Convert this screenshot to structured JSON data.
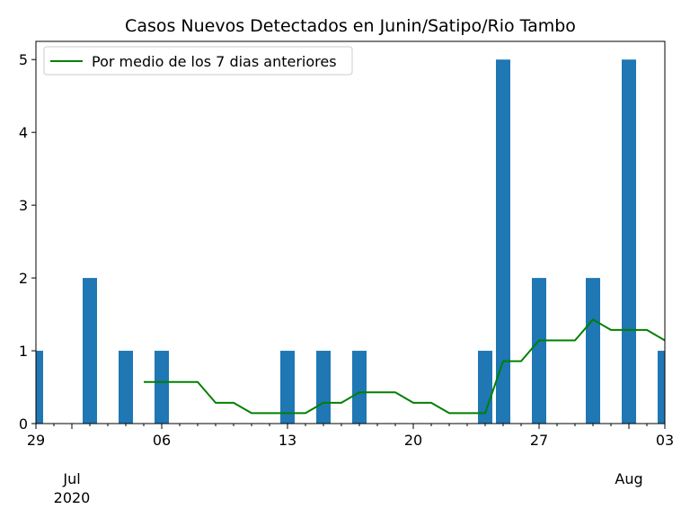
{
  "chart_data": {
    "type": "bar",
    "title": "Casos Nuevos Detectados en Junin/Satipo/Rio Tambo",
    "xlabel": "",
    "ylabel": "",
    "ylim": [
      0,
      5.25
    ],
    "xlim": [
      "2020-06-29",
      "2020-08-03"
    ],
    "grid": false,
    "legend_position": "upper-left",
    "bar_color": "#1f77b4",
    "line_color": "#008000",
    "x_major_ticks": [
      {
        "date": "2020-06-29",
        "label": "29"
      },
      {
        "date": "2020-07-06",
        "label": "06"
      },
      {
        "date": "2020-07-13",
        "label": "13"
      },
      {
        "date": "2020-07-20",
        "label": "20"
      },
      {
        "date": "2020-07-27",
        "label": "27"
      },
      {
        "date": "2020-08-03",
        "label": "03"
      }
    ],
    "x_secondary_labels": [
      {
        "date": "2020-07-01",
        "lines": [
          "Jul",
          "2020"
        ]
      },
      {
        "date": "2020-08-01",
        "lines": [
          "Aug"
        ]
      }
    ],
    "y_ticks": [
      0,
      1,
      2,
      3,
      4,
      5
    ],
    "bars": [
      {
        "date": "2020-06-29",
        "value": 1
      },
      {
        "date": "2020-07-02",
        "value": 2
      },
      {
        "date": "2020-07-04",
        "value": 1
      },
      {
        "date": "2020-07-06",
        "value": 1
      },
      {
        "date": "2020-07-13",
        "value": 1
      },
      {
        "date": "2020-07-15",
        "value": 1
      },
      {
        "date": "2020-07-17",
        "value": 1
      },
      {
        "date": "2020-07-24",
        "value": 1
      },
      {
        "date": "2020-07-25",
        "value": 5
      },
      {
        "date": "2020-07-27",
        "value": 2
      },
      {
        "date": "2020-07-30",
        "value": 2
      },
      {
        "date": "2020-08-01",
        "value": 5
      },
      {
        "date": "2020-08-03",
        "value": 1
      }
    ],
    "series": [
      {
        "name": "Por medio de los 7 dias anteriores",
        "type": "line",
        "points": [
          {
            "date": "2020-07-05",
            "value": 0.571
          },
          {
            "date": "2020-07-06",
            "value": 0.571
          },
          {
            "date": "2020-07-07",
            "value": 0.571
          },
          {
            "date": "2020-07-08",
            "value": 0.571
          },
          {
            "date": "2020-07-09",
            "value": 0.286
          },
          {
            "date": "2020-07-10",
            "value": 0.286
          },
          {
            "date": "2020-07-11",
            "value": 0.143
          },
          {
            "date": "2020-07-12",
            "value": 0.143
          },
          {
            "date": "2020-07-13",
            "value": 0.143
          },
          {
            "date": "2020-07-14",
            "value": 0.143
          },
          {
            "date": "2020-07-15",
            "value": 0.286
          },
          {
            "date": "2020-07-16",
            "value": 0.286
          },
          {
            "date": "2020-07-17",
            "value": 0.429
          },
          {
            "date": "2020-07-18",
            "value": 0.429
          },
          {
            "date": "2020-07-19",
            "value": 0.429
          },
          {
            "date": "2020-07-20",
            "value": 0.286
          },
          {
            "date": "2020-07-21",
            "value": 0.286
          },
          {
            "date": "2020-07-22",
            "value": 0.143
          },
          {
            "date": "2020-07-23",
            "value": 0.143
          },
          {
            "date": "2020-07-24",
            "value": 0.143
          },
          {
            "date": "2020-07-25",
            "value": 0.857
          },
          {
            "date": "2020-07-26",
            "value": 0.857
          },
          {
            "date": "2020-07-27",
            "value": 1.143
          },
          {
            "date": "2020-07-28",
            "value": 1.143
          },
          {
            "date": "2020-07-29",
            "value": 1.143
          },
          {
            "date": "2020-07-30",
            "value": 1.429
          },
          {
            "date": "2020-07-31",
            "value": 1.286
          },
          {
            "date": "2020-08-01",
            "value": 1.286
          },
          {
            "date": "2020-08-02",
            "value": 1.286
          },
          {
            "date": "2020-08-03",
            "value": 1.143
          }
        ]
      }
    ]
  }
}
